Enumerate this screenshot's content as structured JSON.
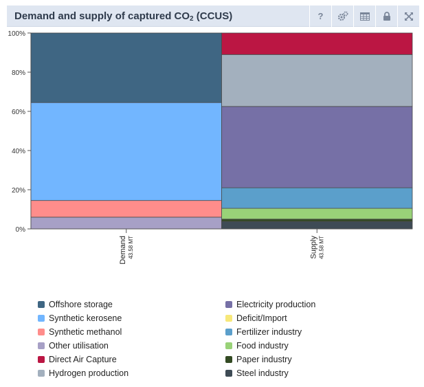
{
  "header": {
    "title_main": "Demand and supply of captured CO",
    "title_sub": "2",
    "title_suffix": " (CCUS)",
    "tools": [
      {
        "name": "help-icon",
        "label": "?"
      },
      {
        "name": "settings-icon",
        "label": "settings"
      },
      {
        "name": "table-icon",
        "label": "table"
      },
      {
        "name": "lock-icon",
        "label": "lock"
      },
      {
        "name": "fullscreen-icon",
        "label": "fullscreen"
      }
    ]
  },
  "chart_data": {
    "type": "bar",
    "stacked": true,
    "title": "Demand and supply of captured CO2 (CCUS)",
    "ylim": [
      0,
      100
    ],
    "yticks": [
      "0%",
      "20%",
      "40%",
      "60%",
      "80%",
      "100%"
    ],
    "categories": [
      {
        "label": "Demand",
        "sublabel": "43.58 MT"
      },
      {
        "label": "Supply",
        "sublabel": "43.58 MT"
      }
    ],
    "series": [
      {
        "name": "Offshore storage",
        "color": "#3f6683",
        "values": [
          35.5,
          0
        ]
      },
      {
        "name": "Synthetic kerosene",
        "color": "#72b6ff",
        "values": [
          50,
          0
        ]
      },
      {
        "name": "Synthetic methanol",
        "color": "#ff8d8b",
        "values": [
          8.5,
          0
        ]
      },
      {
        "name": "Other utilisation",
        "color": "#a7a0c6",
        "values": [
          6,
          0
        ]
      },
      {
        "name": "Direct Air Capture",
        "color": "#bb1643",
        "values": [
          0,
          11
        ]
      },
      {
        "name": "Hydrogen production",
        "color": "#a3b0be",
        "values": [
          0,
          26.5
        ]
      },
      {
        "name": "Electricity production",
        "color": "#7670a6",
        "values": [
          0,
          41.5
        ]
      },
      {
        "name": "Deficit/Import",
        "color": "#f7e87a",
        "values": [
          0,
          0
        ]
      },
      {
        "name": "Fertilizer industry",
        "color": "#5b9fcb",
        "values": [
          0,
          10.5
        ]
      },
      {
        "name": "Food industry",
        "color": "#99d278",
        "values": [
          0,
          5.5
        ]
      },
      {
        "name": "Paper industry",
        "color": "#334a23",
        "values": [
          0,
          1.2
        ]
      },
      {
        "name": "Steel industry",
        "color": "#3e4b55",
        "values": [
          0,
          3.8
        ]
      }
    ],
    "stack_order_bottom_to_top": [
      [
        "Other utilisation",
        "Synthetic methanol",
        "Synthetic kerosene",
        "Offshore storage"
      ],
      [
        "Steel industry",
        "Paper industry",
        "Food industry",
        "Fertilizer industry",
        "Electricity production",
        "Hydrogen production",
        "Direct Air Capture"
      ]
    ]
  },
  "legend": {
    "column_1": [
      "Offshore storage",
      "Synthetic kerosene",
      "Synthetic methanol",
      "Other utilisation",
      "Direct Air Capture",
      "Hydrogen production"
    ],
    "column_2": [
      "Electricity production",
      "Deficit/Import",
      "Fertilizer industry",
      "Food industry",
      "Paper industry",
      "Steel industry"
    ]
  }
}
